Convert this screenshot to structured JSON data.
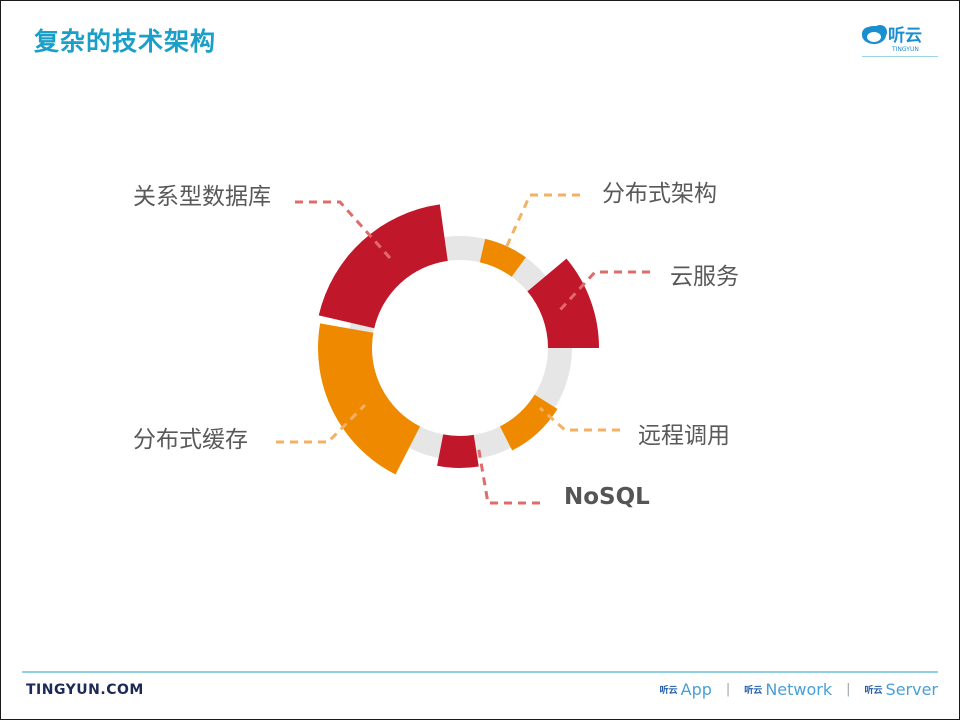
{
  "header": {
    "title": "复杂的技术架构",
    "logo": {
      "text": "听云",
      "subtext": "TINGYUN"
    }
  },
  "diagram": {
    "segments": [
      {
        "label": "关系型数据库",
        "color": "#c0182a"
      },
      {
        "label": "分布式架构",
        "color": "#ef8a00"
      },
      {
        "label": "云服务",
        "color": "#c0182a"
      },
      {
        "label": "远程调用",
        "color": "#ef8a00"
      },
      {
        "label": "NoSQL",
        "color": "#c0182a"
      },
      {
        "label": "分布式缓存",
        "color": "#ef8a00"
      }
    ],
    "ring_color": "#e6e6e6",
    "red_leader_color": "#e06b6b",
    "orange_leader_color": "#f4b164"
  },
  "footer": {
    "site": "TINGYUN.COM",
    "products": [
      {
        "mini": "听云",
        "name": "App"
      },
      {
        "mini": "听云",
        "name": "Network"
      },
      {
        "mini": "听云",
        "name": "Server"
      }
    ],
    "separator": "|"
  }
}
